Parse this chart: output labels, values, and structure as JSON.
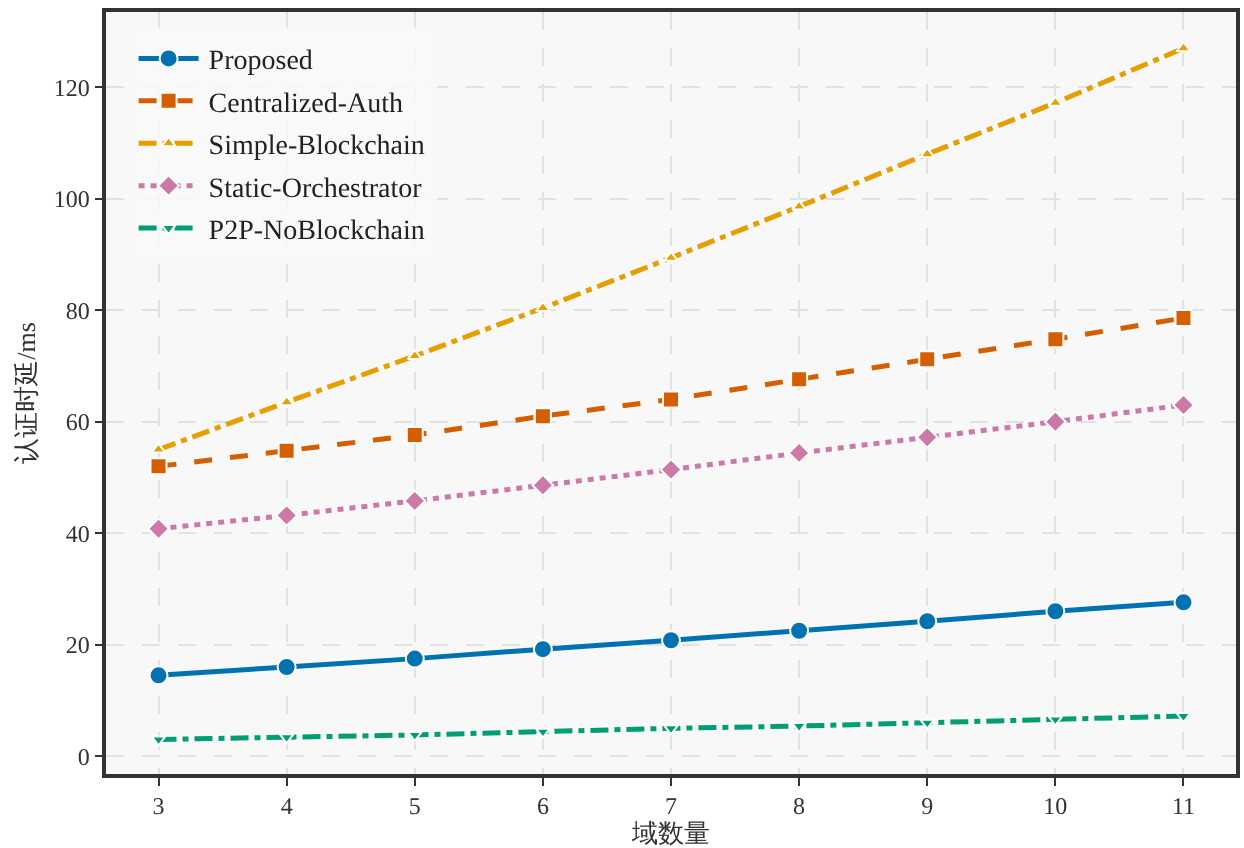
{
  "chart_data": {
    "type": "line",
    "xlabel": "域数量",
    "ylabel": "认证时延/ms",
    "x": [
      3,
      4,
      5,
      6,
      7,
      8,
      9,
      10,
      11
    ],
    "series": [
      {
        "name": "Proposed",
        "color": "#0072b2",
        "marker": "circle",
        "line_style": "solid",
        "values": [
          14.5,
          16,
          17.5,
          19.2,
          20.8,
          22.5,
          24.2,
          26,
          27.6
        ]
      },
      {
        "name": "Centralized-Auth",
        "color": "#d55e00",
        "marker": "square",
        "line_style": "dashed",
        "values": [
          52,
          54.8,
          57.6,
          61,
          64,
          67.6,
          71.2,
          74.8,
          78.6
        ]
      },
      {
        "name": "Simple-Blockchain",
        "color": "#e69f00",
        "marker": "triangle",
        "line_style": "dashdot",
        "values": [
          55,
          63.5,
          71.8,
          80.4,
          89.4,
          98.6,
          108,
          117.2,
          127
        ]
      },
      {
        "name": "Static-Orchestrator",
        "color": "#cc79a7",
        "marker": "diamond",
        "line_style": "dotted",
        "values": [
          40.8,
          43.2,
          45.8,
          48.6,
          51.4,
          54.4,
          57.2,
          60,
          63
        ]
      },
      {
        "name": "P2P-NoBlockchain",
        "color": "#009e73",
        "marker": "triangle-down",
        "line_style": "dashdot",
        "values": [
          3,
          3.4,
          3.8,
          4.4,
          5,
          5.4,
          6,
          6.6,
          7.2
        ]
      }
    ],
    "xlim": [
      2.59,
      11.41
    ],
    "xticks": [
      3,
      4,
      5,
      6,
      7,
      8,
      9,
      10,
      11
    ],
    "ylim": [
      -3.2,
      133.5
    ],
    "yticks": [
      0,
      20,
      40,
      60,
      80,
      100,
      120
    ],
    "grid": true,
    "legend": "top left"
  }
}
